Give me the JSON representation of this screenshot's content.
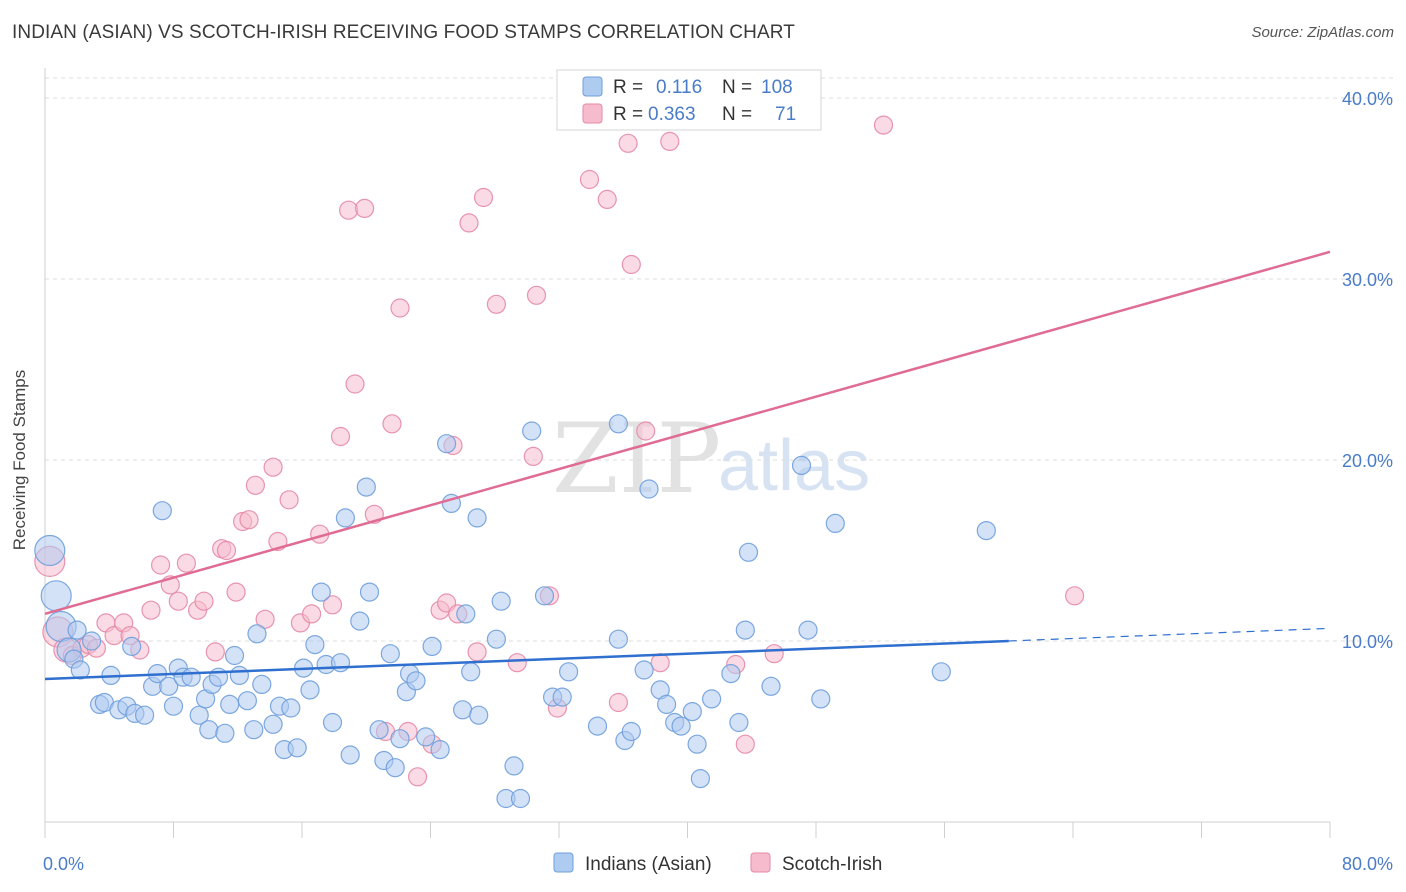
{
  "header": {
    "title": "INDIAN (ASIAN) VS SCOTCH-IRISH RECEIVING FOOD STAMPS CORRELATION CHART",
    "source": "Source: ZipAtlas.com"
  },
  "watermark": {
    "zip": "ZIP",
    "atlas": "atlas"
  },
  "stats_legend": {
    "rows": [
      {
        "r_label": "R =",
        "r_value": "0.116",
        "n_label": "N =",
        "n_value": "108",
        "color": "#aecbf0",
        "stroke": "#6f9fdc"
      },
      {
        "r_label": "R =",
        "r_value": "0.363",
        "n_label": "N =",
        "n_value": "71",
        "color": "#f6bccd",
        "stroke": "#e58aa6"
      }
    ]
  },
  "bottom_legend": {
    "items": [
      {
        "label": "Indians (Asian)",
        "color": "#aecbf0",
        "stroke": "#6f9fdc"
      },
      {
        "label": "Scotch-Irish",
        "color": "#f6bccd",
        "stroke": "#e58aa6"
      }
    ]
  },
  "chart_data": {
    "type": "scatter",
    "title": "INDIAN (ASIAN) VS SCOTCH-IRISH RECEIVING FOOD STAMPS CORRELATION CHART",
    "xlabel": "",
    "ylabel": "Receiving Food Stamps",
    "xlim": [
      0,
      80
    ],
    "ylim": [
      0,
      40
    ],
    "x_tick_labels": [
      "0.0%",
      "80.0%"
    ],
    "y_ticks": [
      10,
      20,
      30,
      40
    ],
    "y_tick_labels": [
      "10.0%",
      "20.0%",
      "30.0%",
      "40.0%"
    ],
    "grid": "horizontal dashed",
    "legend_position": "top-center",
    "colors": {
      "indians": "#6f9fdc",
      "indians_line": "#2f6fcf",
      "scotch": "#e58aa6",
      "scotch_line": "#e06b93"
    },
    "series": [
      {
        "name": "Indians (Asian)",
        "trend": {
          "x_start": 0,
          "y_start": 7.9,
          "x_end": 60,
          "y_end": 10.0,
          "dashed_to_x": 80,
          "dashed_to_y": 10.7
        },
        "points": [
          [
            0.3,
            15.0
          ],
          [
            0.7,
            12.5
          ],
          [
            1.0,
            10.8
          ],
          [
            1.5,
            9.5
          ],
          [
            2.0,
            10.6
          ],
          [
            1.8,
            9.0
          ],
          [
            2.2,
            8.4
          ],
          [
            2.9,
            10.0
          ],
          [
            4.1,
            8.1
          ],
          [
            3.4,
            6.5
          ],
          [
            3.7,
            6.6
          ],
          [
            4.6,
            6.2
          ],
          [
            5.1,
            6.4
          ],
          [
            5.4,
            9.7
          ],
          [
            5.6,
            6.0
          ],
          [
            6.2,
            5.9
          ],
          [
            6.7,
            7.5
          ],
          [
            7.0,
            8.2
          ],
          [
            7.3,
            17.2
          ],
          [
            7.7,
            7.5
          ],
          [
            8.0,
            6.4
          ],
          [
            8.3,
            8.5
          ],
          [
            8.6,
            8.0
          ],
          [
            9.1,
            8.0
          ],
          [
            9.6,
            5.9
          ],
          [
            10.0,
            6.8
          ],
          [
            10.2,
            5.1
          ],
          [
            10.4,
            7.6
          ],
          [
            10.8,
            8.0
          ],
          [
            11.2,
            4.9
          ],
          [
            11.5,
            6.5
          ],
          [
            11.8,
            9.2
          ],
          [
            12.1,
            8.1
          ],
          [
            12.6,
            6.7
          ],
          [
            13.0,
            5.1
          ],
          [
            13.2,
            10.4
          ],
          [
            13.5,
            7.6
          ],
          [
            14.2,
            5.4
          ],
          [
            14.6,
            6.4
          ],
          [
            14.9,
            4.0
          ],
          [
            15.3,
            6.3
          ],
          [
            15.7,
            4.1
          ],
          [
            16.1,
            8.5
          ],
          [
            16.5,
            7.3
          ],
          [
            16.8,
            9.8
          ],
          [
            17.2,
            12.7
          ],
          [
            17.5,
            8.7
          ],
          [
            17.9,
            5.5
          ],
          [
            18.4,
            8.8
          ],
          [
            18.7,
            16.8
          ],
          [
            19.0,
            3.7
          ],
          [
            19.6,
            11.1
          ],
          [
            20.0,
            18.5
          ],
          [
            20.2,
            12.7
          ],
          [
            20.8,
            5.1
          ],
          [
            21.1,
            3.4
          ],
          [
            21.5,
            9.3
          ],
          [
            21.8,
            3.0
          ],
          [
            22.1,
            4.6
          ],
          [
            22.5,
            7.2
          ],
          [
            22.7,
            8.2
          ],
          [
            23.1,
            7.8
          ],
          [
            23.7,
            4.7
          ],
          [
            24.1,
            9.7
          ],
          [
            24.6,
            4.0
          ],
          [
            25.0,
            20.9
          ],
          [
            25.3,
            17.6
          ],
          [
            26.0,
            6.2
          ],
          [
            26.2,
            11.5
          ],
          [
            26.5,
            8.3
          ],
          [
            26.9,
            16.8
          ],
          [
            27.0,
            5.9
          ],
          [
            28.1,
            10.1
          ],
          [
            28.4,
            12.2
          ],
          [
            28.7,
            1.3
          ],
          [
            29.2,
            3.1
          ],
          [
            29.6,
            1.3
          ],
          [
            30.3,
            21.6
          ],
          [
            31.1,
            12.5
          ],
          [
            31.6,
            6.9
          ],
          [
            32.2,
            6.9
          ],
          [
            32.6,
            8.3
          ],
          [
            34.4,
            5.3
          ],
          [
            35.7,
            22.0
          ],
          [
            35.7,
            10.1
          ],
          [
            36.1,
            4.5
          ],
          [
            36.5,
            5.0
          ],
          [
            37.3,
            8.4
          ],
          [
            37.6,
            18.4
          ],
          [
            38.3,
            7.3
          ],
          [
            38.7,
            6.5
          ],
          [
            39.2,
            5.5
          ],
          [
            39.6,
            5.3
          ],
          [
            40.3,
            6.1
          ],
          [
            40.6,
            4.3
          ],
          [
            40.8,
            2.4
          ],
          [
            41.5,
            6.8
          ],
          [
            42.7,
            8.2
          ],
          [
            43.2,
            5.5
          ],
          [
            43.6,
            10.6
          ],
          [
            43.8,
            14.9
          ],
          [
            45.2,
            7.5
          ],
          [
            47.1,
            19.7
          ],
          [
            47.5,
            10.6
          ],
          [
            48.3,
            6.8
          ],
          [
            49.2,
            16.5
          ],
          [
            58.6,
            16.1
          ],
          [
            55.8,
            8.3
          ]
        ]
      },
      {
        "name": "Scotch-Irish",
        "trend": {
          "x_start": 0,
          "y_start": 11.5,
          "x_end": 80,
          "y_end": 31.5
        },
        "points": [
          [
            0.3,
            14.4
          ],
          [
            0.8,
            10.5
          ],
          [
            1.3,
            9.5
          ],
          [
            1.7,
            9.2
          ],
          [
            2.3,
            9.6
          ],
          [
            2.7,
            9.8
          ],
          [
            3.2,
            9.6
          ],
          [
            3.8,
            11.0
          ],
          [
            4.3,
            10.3
          ],
          [
            4.9,
            11.0
          ],
          [
            5.3,
            10.3
          ],
          [
            5.9,
            9.5
          ],
          [
            6.6,
            11.7
          ],
          [
            7.2,
            14.2
          ],
          [
            7.8,
            13.1
          ],
          [
            8.3,
            12.2
          ],
          [
            8.8,
            14.3
          ],
          [
            9.5,
            11.7
          ],
          [
            9.9,
            12.2
          ],
          [
            10.6,
            9.4
          ],
          [
            11.0,
            15.1
          ],
          [
            11.3,
            15.0
          ],
          [
            11.9,
            12.7
          ],
          [
            12.3,
            16.6
          ],
          [
            12.7,
            16.7
          ],
          [
            13.1,
            18.6
          ],
          [
            13.7,
            11.2
          ],
          [
            14.2,
            19.6
          ],
          [
            14.5,
            15.5
          ],
          [
            15.2,
            17.8
          ],
          [
            15.9,
            11.0
          ],
          [
            16.6,
            11.5
          ],
          [
            17.1,
            15.9
          ],
          [
            17.9,
            12.0
          ],
          [
            18.4,
            21.3
          ],
          [
            18.9,
            33.8
          ],
          [
            19.3,
            24.2
          ],
          [
            19.9,
            33.9
          ],
          [
            20.5,
            17.0
          ],
          [
            21.2,
            5.0
          ],
          [
            21.6,
            22.0
          ],
          [
            22.1,
            28.4
          ],
          [
            22.6,
            5.0
          ],
          [
            23.2,
            2.5
          ],
          [
            24.1,
            4.3
          ],
          [
            24.6,
            11.7
          ],
          [
            25.0,
            12.1
          ],
          [
            25.4,
            20.8
          ],
          [
            25.7,
            11.5
          ],
          [
            26.4,
            33.1
          ],
          [
            26.9,
            9.4
          ],
          [
            27.3,
            34.5
          ],
          [
            28.1,
            28.6
          ],
          [
            29.4,
            8.8
          ],
          [
            30.4,
            20.2
          ],
          [
            30.6,
            29.1
          ],
          [
            31.4,
            12.5
          ],
          [
            31.9,
            6.3
          ],
          [
            33.9,
            35.5
          ],
          [
            35.0,
            34.4
          ],
          [
            35.7,
            6.6
          ],
          [
            36.3,
            37.5
          ],
          [
            36.5,
            30.8
          ],
          [
            37.4,
            21.6
          ],
          [
            38.3,
            8.8
          ],
          [
            38.9,
            37.6
          ],
          [
            43.0,
            8.7
          ],
          [
            43.6,
            4.3
          ],
          [
            45.4,
            9.3
          ],
          [
            52.2,
            38.5
          ],
          [
            64.1,
            12.5
          ]
        ]
      }
    ]
  }
}
